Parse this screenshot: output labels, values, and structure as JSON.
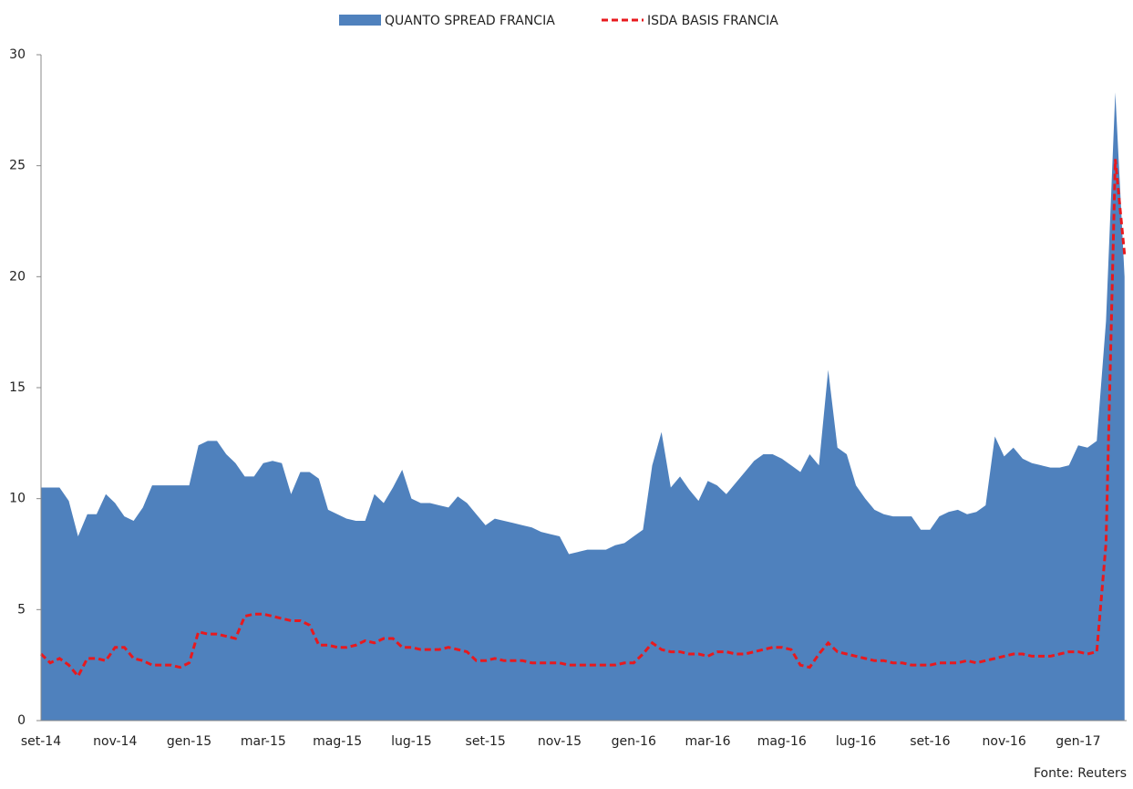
{
  "chart_data": {
    "type": "area",
    "source": "Fonte: Reuters",
    "categories": [
      "set-14",
      null,
      null,
      null,
      null,
      null,
      null,
      null,
      "nov-14",
      null,
      null,
      null,
      null,
      null,
      null,
      null,
      "gen-15",
      null,
      null,
      null,
      null,
      null,
      null,
      null,
      "mar-15",
      null,
      null,
      null,
      null,
      null,
      null,
      null,
      "mag-15",
      null,
      null,
      null,
      null,
      null,
      null,
      null,
      "lug-15",
      null,
      null,
      null,
      null,
      null,
      null,
      null,
      "set-15",
      null,
      null,
      null,
      null,
      null,
      null,
      null,
      "nov-15",
      null,
      null,
      null,
      null,
      null,
      null,
      null,
      "gen-16",
      null,
      null,
      null,
      null,
      null,
      null,
      null,
      "mar-16",
      null,
      null,
      null,
      null,
      null,
      null,
      null,
      "mag-16",
      null,
      null,
      null,
      null,
      null,
      null,
      null,
      "lug-16",
      null,
      null,
      null,
      null,
      null,
      null,
      null,
      "set-16",
      null,
      null,
      null,
      null,
      null,
      null,
      null,
      "nov-16",
      null,
      null,
      null,
      null,
      null,
      null,
      null,
      "gen-17",
      null,
      null,
      null,
      null,
      null
    ],
    "series": [
      {
        "name": "QUANTO SPREAD FRANCIA",
        "style": "area",
        "color": "#4f81bd",
        "values": [
          10.5,
          10.5,
          10.5,
          9.9,
          8.3,
          9.3,
          9.3,
          10.2,
          9.8,
          9.2,
          9.0,
          9.6,
          10.6,
          10.6,
          10.6,
          10.6,
          10.6,
          12.4,
          12.6,
          12.6,
          12.0,
          11.6,
          11.0,
          11.0,
          11.6,
          11.7,
          11.6,
          10.2,
          11.2,
          11.2,
          10.9,
          9.5,
          9.3,
          9.1,
          9.0,
          9.0,
          10.2,
          9.8,
          10.5,
          11.3,
          10.0,
          9.8,
          9.8,
          9.7,
          9.6,
          10.1,
          9.8,
          9.3,
          8.8,
          9.1,
          9.0,
          8.9,
          8.8,
          8.7,
          8.5,
          8.4,
          8.3,
          7.5,
          7.6,
          7.7,
          7.7,
          7.7,
          7.9,
          8.0,
          8.3,
          8.6,
          11.5,
          13.0,
          10.5,
          11.0,
          10.4,
          9.9,
          10.8,
          10.6,
          10.2,
          10.7,
          11.2,
          11.7,
          12.0,
          12.0,
          11.8,
          11.5,
          11.2,
          12.0,
          11.5,
          15.8,
          12.3,
          12.0,
          10.6,
          10.0,
          9.5,
          9.3,
          9.2,
          9.2,
          9.2,
          8.6,
          8.6,
          9.2,
          9.4,
          9.5,
          9.3,
          9.4,
          9.7,
          12.8,
          11.9,
          12.3,
          11.8,
          11.6,
          11.5,
          11.4,
          11.4,
          11.5,
          12.4,
          12.3,
          12.6,
          18.0,
          28.3,
          20.0
        ]
      },
      {
        "name": "ISDA BASIS FRANCIA",
        "style": "dashed-line",
        "color": "#e8191e",
        "values": [
          3.0,
          2.6,
          2.8,
          2.5,
          2.0,
          2.8,
          2.8,
          2.7,
          3.3,
          3.3,
          2.8,
          2.7,
          2.5,
          2.5,
          2.5,
          2.4,
          2.6,
          4.0,
          3.9,
          3.9,
          3.8,
          3.7,
          4.7,
          4.8,
          4.8,
          4.7,
          4.6,
          4.5,
          4.5,
          4.3,
          3.4,
          3.4,
          3.3,
          3.3,
          3.4,
          3.6,
          3.5,
          3.7,
          3.7,
          3.3,
          3.3,
          3.2,
          3.2,
          3.2,
          3.3,
          3.2,
          3.1,
          2.7,
          2.7,
          2.8,
          2.7,
          2.7,
          2.7,
          2.6,
          2.6,
          2.6,
          2.6,
          2.5,
          2.5,
          2.5,
          2.5,
          2.5,
          2.5,
          2.6,
          2.6,
          3.0,
          3.5,
          3.2,
          3.1,
          3.1,
          3.0,
          3.0,
          2.9,
          3.1,
          3.1,
          3.0,
          3.0,
          3.1,
          3.2,
          3.3,
          3.3,
          3.2,
          2.5,
          2.4,
          3.0,
          3.5,
          3.1,
          3.0,
          2.9,
          2.8,
          2.7,
          2.7,
          2.6,
          2.6,
          2.5,
          2.5,
          2.5,
          2.6,
          2.6,
          2.6,
          2.7,
          2.6,
          2.7,
          2.8,
          2.9,
          3.0,
          3.0,
          2.9,
          2.9,
          2.9,
          3.0,
          3.1,
          3.1,
          3.0,
          3.1,
          8.0,
          25.3,
          21.0
        ]
      }
    ],
    "ylim": [
      0,
      30
    ],
    "yticks": [
      0,
      5,
      10,
      15,
      20,
      25,
      30
    ],
    "grid": false,
    "legend": "top"
  }
}
